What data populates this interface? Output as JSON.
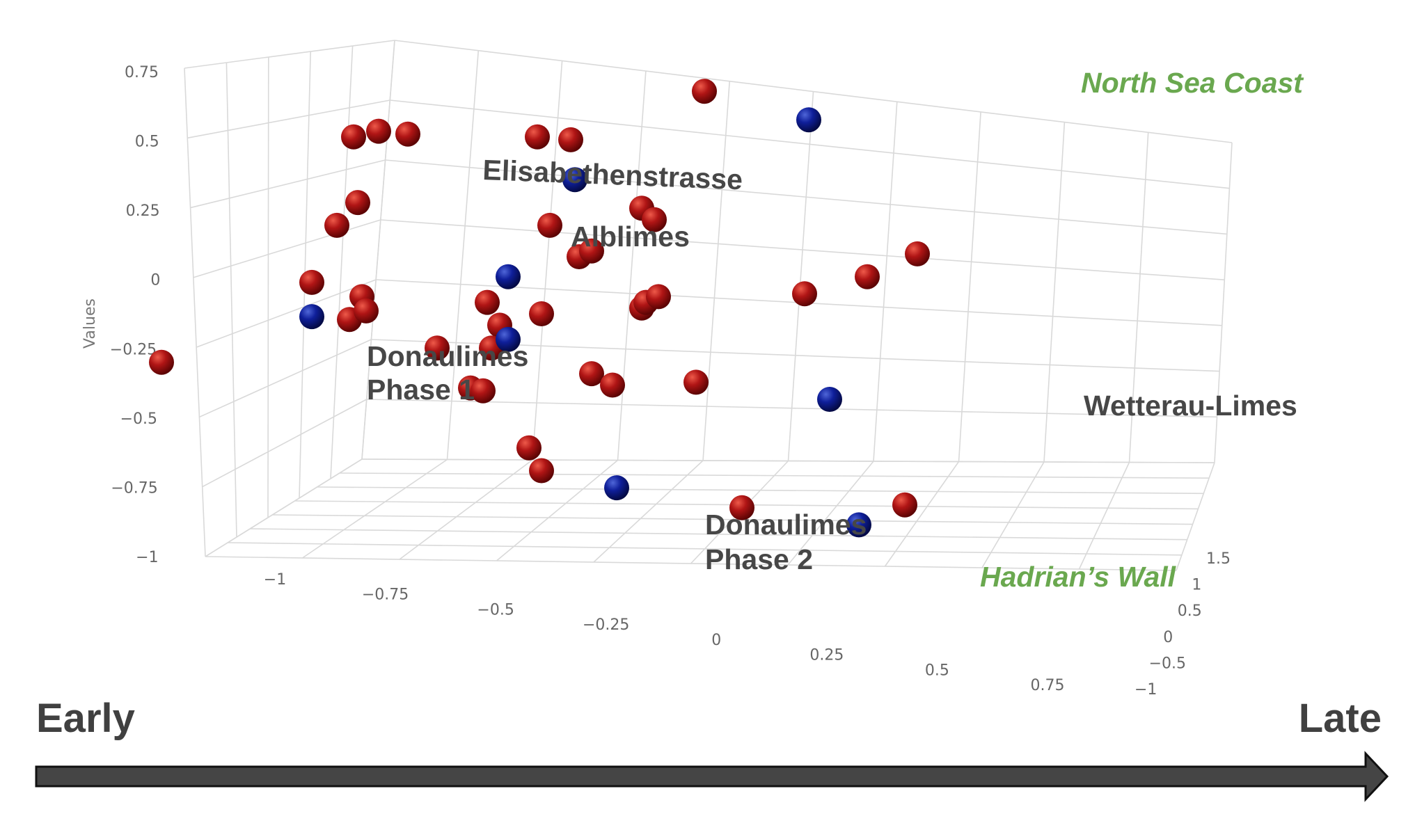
{
  "chart_data": {
    "type": "scatter",
    "projection": "3d",
    "ylabel": "Values",
    "z_ticks": [
      "0.75",
      "0.5",
      "0.25",
      "0",
      "−0.25",
      "−0.5",
      "−0.75",
      "−1"
    ],
    "x_ticks": [
      "−1",
      "−0.75",
      "−0.5",
      "−0.25",
      "0",
      "0.25",
      "0.5",
      "0.75"
    ],
    "y_ticks": [
      "1.5",
      "1",
      "0.5",
      "0",
      "−0.5",
      "−1"
    ],
    "grid": true,
    "colors": {
      "red": "#a00f0f",
      "blue": "#0d1b8f",
      "grid": "#d9d9d9",
      "green": "#6aa84f",
      "text": "#474747"
    },
    "points_note": "approximate screen-projected placement of 3D points",
    "series": [
      {
        "color": "red",
        "points": [
          [
            -0.98,
            -0.27
          ],
          [
            -0.62,
            0.01
          ],
          [
            -0.53,
            -0.12
          ],
          [
            -0.56,
            0.21
          ],
          [
            -0.51,
            0.29
          ],
          [
            -0.52,
            0.52
          ],
          [
            -0.46,
            0.54
          ],
          [
            -0.5,
            -0.04
          ],
          [
            -0.49,
            -0.09
          ],
          [
            -0.32,
            -0.22
          ],
          [
            -0.39,
            0.53
          ],
          [
            -0.2,
            -0.06
          ],
          [
            -0.17,
            -0.14
          ],
          [
            -0.19,
            -0.22
          ],
          [
            -0.24,
            -0.36
          ],
          [
            -0.21,
            -0.37
          ],
          [
            -0.07,
            -0.1
          ],
          [
            -0.08,
            0.52
          ],
          [
            -0.05,
            0.21
          ],
          [
            0.0,
            0.51
          ],
          [
            0.02,
            0.1
          ],
          [
            0.05,
            0.12
          ],
          [
            0.05,
            -0.31
          ],
          [
            0.1,
            -0.35
          ],
          [
            -0.1,
            -0.57
          ],
          [
            -0.07,
            -0.65
          ],
          [
            0.17,
            0.27
          ],
          [
            0.2,
            0.23
          ],
          [
            0.17,
            -0.08
          ],
          [
            0.18,
            -0.06
          ],
          [
            0.21,
            -0.04
          ],
          [
            0.32,
            0.68
          ],
          [
            0.3,
            -0.34
          ],
          [
            0.41,
            -0.78
          ],
          [
            0.56,
            -0.03
          ],
          [
            0.71,
            0.03
          ],
          [
            0.83,
            0.11
          ],
          [
            0.8,
            -0.77
          ]
        ]
      },
      {
        "color": "blue",
        "points": [
          [
            -0.62,
            -0.11
          ],
          [
            -0.15,
            0.03
          ],
          [
            -0.15,
            -0.19
          ],
          [
            0.01,
            0.37
          ],
          [
            0.11,
            -0.71
          ],
          [
            0.62,
            -0.4
          ],
          [
            0.57,
            0.58
          ],
          [
            0.69,
            -0.84
          ]
        ]
      }
    ],
    "annotations": [
      {
        "id": "north_sea",
        "text": "North Sea Coast",
        "style": "green"
      },
      {
        "id": "elisabethen",
        "text": "Elisabethenstrasse",
        "style": "dark"
      },
      {
        "id": "alblimes",
        "text": "Alblimes",
        "style": "dark"
      },
      {
        "id": "donau1_l1",
        "text": "Donaulimes",
        "style": "dark"
      },
      {
        "id": "donau1_l2",
        "text": "Phase 1",
        "style": "dark"
      },
      {
        "id": "wetterau",
        "text": "Wetterau-Limes",
        "style": "dark"
      },
      {
        "id": "donau2_l1",
        "text": "Donaulimes",
        "style": "dark"
      },
      {
        "id": "donau2_l2",
        "text": "Phase 2",
        "style": "dark"
      },
      {
        "id": "hadrian",
        "text": "Hadrian’s Wall",
        "style": "green"
      }
    ],
    "timeline": {
      "start": "Early",
      "end": "Late"
    }
  }
}
